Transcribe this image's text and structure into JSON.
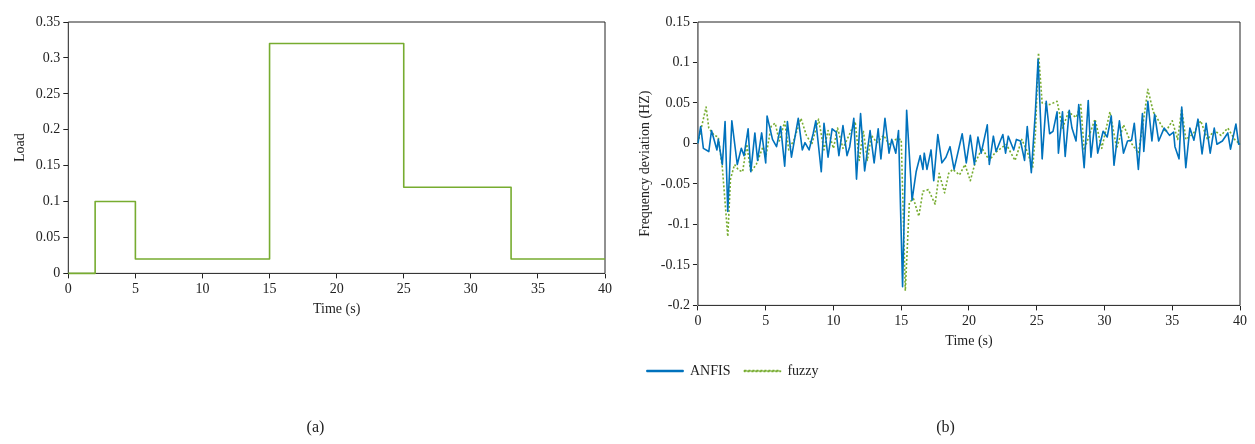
{
  "chart_data": [
    {
      "type": "step",
      "xlabel": "Time (s)",
      "ylabel": "Load",
      "x": [
        0,
        2,
        5,
        15,
        25,
        33,
        40
      ],
      "values": [
        0,
        0.1,
        0.02,
        0.32,
        0.12,
        0.02,
        0.02
      ],
      "color": "#77ac30",
      "xlim": [
        0,
        40
      ],
      "ylim": [
        0,
        0.35
      ],
      "xticks": [
        0,
        5,
        10,
        15,
        20,
        25,
        30,
        35,
        40
      ],
      "yticks": [
        0,
        0.05,
        0.1,
        0.15,
        0.2,
        0.25,
        0.3,
        0.35
      ],
      "annotations": [
        "(a)"
      ]
    },
    {
      "type": "line",
      "xlabel": "Time (s)",
      "ylabel": "Frequency deviation (HZ)",
      "xlim": [
        0,
        40
      ],
      "ylim": [
        -0.2,
        0.15
      ],
      "xticks": [
        0,
        5,
        10,
        15,
        20,
        25,
        30,
        35,
        40
      ],
      "yticks": [
        -0.2,
        -0.15,
        -0.1,
        -0.05,
        0,
        0.05,
        0.1,
        0.15
      ],
      "legend": "bottom",
      "annotations": [
        "(b)"
      ],
      "series": [
        {
          "name": "ANFIS",
          "color": "#0072bd",
          "line_style": "solid",
          "x": [
            0,
            0.2,
            0.4,
            0.8,
            1.0,
            1.4,
            1.5,
            1.8,
            2.0,
            2.2,
            2.5,
            2.9,
            3.2,
            3.4,
            3.7,
            3.9,
            4.2,
            4.4,
            4.7,
            5.0,
            5.1,
            5.5,
            5.8,
            6.1,
            6.4,
            6.6,
            6.9,
            7.4,
            7.7,
            7.9,
            8.2,
            8.5,
            8.7,
            9.1,
            9.3,
            9.6,
            9.9,
            10.2,
            10.4,
            10.7,
            11.0,
            11.2,
            11.5,
            11.7,
            12.0,
            12.3,
            12.7,
            13.0,
            13.3,
            13.5,
            13.8,
            14.1,
            14.3,
            14.6,
            14.8,
            15.1,
            15.4,
            15.8,
            16.1,
            16.4,
            16.6,
            16.7,
            16.9,
            17.2,
            17.4,
            17.7,
            18.0,
            18.3,
            18.6,
            18.9,
            19.5,
            19.8,
            20.1,
            20.4,
            20.66,
            20.9,
            21.35,
            21.5,
            21.8,
            22.0,
            22.5,
            22.7,
            22.9,
            23.3,
            23.5,
            23.8,
            24.1,
            24.3,
            24.6,
            24.9,
            25.1,
            25.4,
            25.7,
            25.95,
            26.2,
            26.5,
            26.6,
            26.9,
            27.1,
            27.4,
            27.6,
            27.9,
            28.1,
            28.5,
            28.8,
            29.0,
            29.3,
            29.5,
            29.9,
            30.2,
            30.5,
            30.7,
            31.1,
            31.4,
            31.7,
            32.0,
            32.2,
            32.5,
            32.8,
            32.9,
            33.2,
            33.5,
            33.7,
            34.0,
            34.4,
            34.8,
            35.1,
            35.2,
            35.5,
            35.7,
            36.0,
            36.3,
            36.6,
            36.9,
            37.2,
            37.5,
            37.8,
            38.1,
            38.3,
            38.7,
            39.1,
            39.3,
            39.7,
            39.9,
            40
          ],
          "values": [
            0,
            0.021,
            -0.006,
            -0.01,
            0.016,
            -0.008,
            0.005,
            -0.026,
            0.027,
            -0.084,
            0.028,
            -0.026,
            -0.006,
            -0.015,
            0.018,
            -0.035,
            0.013,
            -0.021,
            0.013,
            -0.024,
            0.034,
            0.005,
            -0.004,
            0.021,
            -0.028,
            0.027,
            -0.017,
            0.031,
            -0.008,
            0.001,
            -0.008,
            0.012,
            0.028,
            -0.035,
            0.025,
            -0.017,
            0.018,
            0.014,
            -0.015,
            0.022,
            -0.015,
            -0.004,
            0.031,
            -0.044,
            0.037,
            -0.034,
            0.016,
            -0.024,
            0.018,
            -0.019,
            0.031,
            -0.012,
            0.005,
            -0.012,
            0.016,
            -0.177,
            0.041,
            -0.07,
            -0.035,
            -0.015,
            -0.032,
            -0.012,
            -0.032,
            -0.008,
            -0.046,
            0.011,
            -0.024,
            -0.017,
            -0.004,
            -0.032,
            0.012,
            -0.024,
            0.01,
            -0.026,
            0.008,
            -0.012,
            0.023,
            -0.026,
            0.009,
            -0.01,
            0.011,
            -0.012,
            0.009,
            -0.008,
            0.005,
            0.003,
            -0.021,
            0.021,
            -0.036,
            0.039,
            0.104,
            -0.019,
            0.052,
            0.012,
            0.015,
            0.039,
            -0.012,
            0.039,
            -0.016,
            0.041,
            0.019,
            0.003,
            0.048,
            -0.03,
            0.053,
            -0.017,
            0.027,
            -0.012,
            0.015,
            0.008,
            0.034,
            -0.027,
            0.028,
            -0.012,
            0.003,
            0.004,
            0.025,
            -0.032,
            0.037,
            -0.01,
            0.052,
            0.003,
            0.036,
            0.003,
            0.019,
            0.01,
            0.014,
            -0.004,
            -0.019,
            0.045,
            -0.03,
            0.019,
            0.004,
            0.03,
            -0.013,
            0.025,
            -0.012,
            0.019,
            -0.001,
            0.003,
            0.013,
            -0.007,
            0.024,
            -0.001,
            0
          ]
        },
        {
          "name": "fuzzy",
          "color": "#77ac30",
          "line_style": "dotted",
          "x": [
            0,
            0.3,
            0.6,
            0.8,
            1.2,
            1.5,
            1.8,
            2.2,
            2.4,
            2.7,
            3.0,
            3.3,
            3.6,
            3.9,
            4.3,
            4.8,
            5.0,
            5.4,
            5.7,
            6.0,
            6.4,
            6.7,
            7.1,
            7.6,
            8.0,
            8.4,
            8.9,
            9.3,
            9.6,
            10.0,
            10.3,
            10.7,
            11.2,
            11.6,
            11.9,
            12.2,
            12.5,
            12.8,
            13.2,
            13.7,
            14.1,
            14.6,
            15.0,
            15.3,
            15.6,
            15.9,
            16.3,
            16.6,
            17.0,
            17.5,
            17.8,
            18.2,
            18.5,
            18.8,
            19.3,
            19.7,
            20.1,
            20.45,
            20.97,
            21.5,
            21.9,
            22.2,
            22.75,
            23.4,
            23.9,
            24.3,
            24.7,
            24.9,
            25.13,
            25.4,
            25.95,
            26.5,
            26.9,
            27.35,
            27.9,
            28.25,
            28.5,
            29.3,
            29.8,
            30.4,
            30.9,
            31.4,
            31.95,
            32.5,
            32.8,
            33.2,
            33.6,
            34.0,
            34.5,
            35.0,
            35.4,
            35.7,
            36.0,
            36.55,
            37.1,
            37.6,
            38.1,
            38.6,
            39.1,
            39.6,
            40
          ],
          "values": [
            0.001,
            0.023,
            0.045,
            0.019,
            0.01,
            0.008,
            -0.03,
            -0.115,
            -0.044,
            -0.026,
            -0.033,
            -0.035,
            -0.001,
            -0.035,
            -0.026,
            -0.004,
            -0.017,
            0.021,
            0.025,
            0.003,
            0.027,
            -0.008,
            0.005,
            0.031,
            0.01,
            -0.001,
            0.03,
            -0.008,
            0.016,
            -0.006,
            0.019,
            -0.006,
            0.012,
            0.027,
            -0.021,
            0.016,
            -0.021,
            0.01,
            0.001,
            0.01,
            -0.001,
            0.005,
            0.005,
            -0.182,
            -0.073,
            -0.068,
            -0.09,
            -0.059,
            -0.057,
            -0.075,
            -0.037,
            -0.061,
            -0.037,
            -0.032,
            -0.039,
            -0.026,
            -0.046,
            -0.024,
            -0.006,
            -0.021,
            -0.012,
            -0.008,
            -0.001,
            -0.021,
            0.005,
            -0.01,
            -0.03,
            0.012,
            0.112,
            0.05,
            0.048,
            0.052,
            0.019,
            0.039,
            0.032,
            0.048,
            -0.008,
            0.03,
            -0.006,
            0.039,
            -0.006,
            0.023,
            0.001,
            -0.012,
            0.019,
            0.067,
            0.039,
            0.028,
            0.014,
            0.028,
            0.005,
            0.043,
            0.005,
            0.012,
            0.028,
            0.005,
            0.016,
            0.01,
            0.019,
            0.005,
            -0.001
          ]
        }
      ]
    }
  ]
}
